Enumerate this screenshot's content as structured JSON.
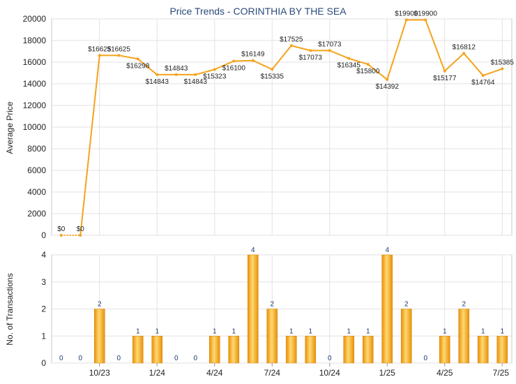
{
  "chart_data": [
    {
      "type": "line",
      "title": "Price Trends - CORINTHIA BY THE SEA",
      "ylabel": "Average Price",
      "ylim": [
        0,
        20000
      ],
      "yticks": [
        0,
        2000,
        4000,
        6000,
        8000,
        10000,
        12000,
        14000,
        16000,
        18000,
        20000
      ],
      "grid": true,
      "color": "#f5a31a",
      "series": [
        {
          "values": [
            0,
            0,
            16625,
            16625,
            16298,
            14843,
            14843,
            14843,
            15323,
            16100,
            16149,
            15335,
            17525,
            17073,
            17073,
            16345,
            15800,
            14392,
            19900,
            19900,
            15177,
            16812,
            14764,
            15385
          ],
          "labels": [
            "$0",
            "$0",
            "$16625",
            "$16625",
            "$16298",
            "$14843",
            "$14843",
            "$14843",
            "$15323",
            "$16100",
            "$16149",
            "$15335",
            "$17525",
            "$17073",
            "$17073",
            "$16345",
            "$15800",
            "$14392",
            "$19900",
            "$19900",
            "$15177",
            "$16812",
            "$14764",
            "$15385"
          ]
        }
      ]
    },
    {
      "type": "bar",
      "ylabel": "No. of Transactions",
      "ylim": [
        0,
        4
      ],
      "yticks": [
        0,
        1,
        2,
        3,
        4
      ],
      "grid": true,
      "color": "#f5a31a",
      "values": [
        0,
        0,
        2,
        0,
        1,
        1,
        0,
        0,
        1,
        1,
        4,
        2,
        1,
        1,
        0,
        1,
        1,
        4,
        2,
        0,
        1,
        2,
        1,
        1
      ],
      "xtick_labels": [
        "10/23",
        "1/24",
        "4/24",
        "7/24",
        "10/24",
        "1/25",
        "4/25",
        "7/25"
      ],
      "xtick_positions": [
        2,
        5,
        8,
        11,
        14,
        17,
        20,
        23
      ]
    }
  ]
}
